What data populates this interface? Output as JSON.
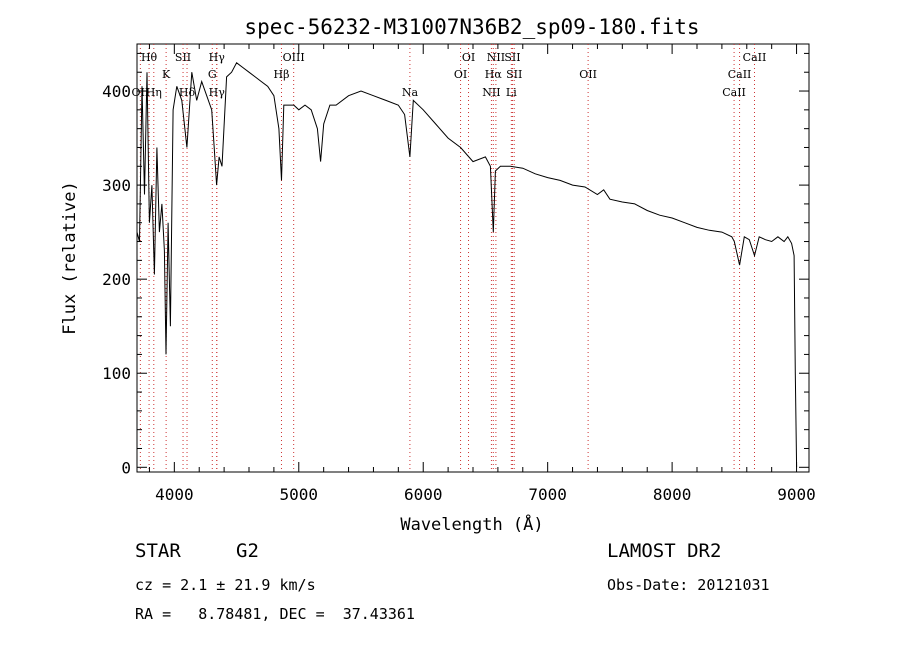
{
  "chart_data": {
    "type": "line",
    "title": "spec-56232-M31007N36B2_sp09-180.fits",
    "xlabel": "Wavelength (Å)",
    "ylabel": "Flux (relative)",
    "xlim": [
      3700,
      9100
    ],
    "ylim": [
      -5,
      450
    ],
    "x_ticks": [
      4000,
      5000,
      6000,
      7000,
      8000,
      9000
    ],
    "y_ticks": [
      0,
      100,
      200,
      300,
      400
    ],
    "grid": false,
    "line_color": "#000000",
    "marker_color": "#cc3333",
    "series": [
      {
        "x": [
          3700,
          3720,
          3740,
          3760,
          3780,
          3800,
          3820,
          3840,
          3860,
          3880,
          3900,
          3920,
          3933,
          3950,
          3968,
          3990,
          4020,
          4060,
          4101,
          4140,
          4180,
          4220,
          4260,
          4300,
          4320,
          4340,
          4360,
          4383,
          4420,
          4460,
          4500,
          4550,
          4600,
          4650,
          4700,
          4750,
          4800,
          4840,
          4861,
          4880,
          4920,
          4960,
          5000,
          5050,
          5100,
          5150,
          5175,
          5200,
          5250,
          5300,
          5400,
          5500,
          5600,
          5700,
          5800,
          5850,
          5893,
          5920,
          6000,
          6100,
          6200,
          6300,
          6400,
          6500,
          6540,
          6563,
          6580,
          6620,
          6700,
          6800,
          6900,
          7000,
          7100,
          7200,
          7300,
          7400,
          7450,
          7500,
          7600,
          7700,
          7800,
          7900,
          8000,
          8100,
          8200,
          8300,
          8400,
          8480,
          8500,
          8542,
          8580,
          8620,
          8662,
          8700,
          8750,
          8800,
          8850,
          8900,
          8930,
          8960,
          8980,
          8990,
          9000
        ],
        "y": [
          250,
          240,
          405,
          290,
          420,
          260,
          300,
          205,
          340,
          250,
          280,
          230,
          120,
          260,
          150,
          380,
          405,
          390,
          340,
          420,
          390,
          410,
          395,
          380,
          340,
          300,
          330,
          320,
          415,
          420,
          430,
          425,
          420,
          415,
          410,
          405,
          395,
          360,
          305,
          385,
          385,
          385,
          380,
          385,
          380,
          360,
          325,
          365,
          385,
          385,
          395,
          400,
          395,
          390,
          385,
          375,
          330,
          390,
          380,
          365,
          350,
          340,
          325,
          330,
          320,
          250,
          315,
          320,
          320,
          318,
          312,
          308,
          305,
          300,
          298,
          290,
          295,
          285,
          282,
          280,
          273,
          268,
          265,
          260,
          255,
          252,
          250,
          245,
          240,
          215,
          245,
          242,
          225,
          245,
          242,
          240,
          245,
          240,
          245,
          238,
          225,
          100,
          0
        ]
      }
    ],
    "annotations": [
      {
        "label": "Hθ",
        "x": 3797,
        "row": 1
      },
      {
        "label": "OII",
        "x": 3727,
        "row": 3
      },
      {
        "label": "Hη",
        "x": 3835,
        "row": 3
      },
      {
        "label": "K",
        "x": 3934,
        "row": 2
      },
      {
        "label": "SII",
        "x": 4070,
        "row": 1
      },
      {
        "label": "Hδ",
        "x": 4102,
        "row": 3
      },
      {
        "label": "Hγ",
        "x": 4341,
        "row": 1
      },
      {
        "label": "G",
        "x": 4305,
        "row": 2
      },
      {
        "label": "Hγ",
        "x": 4341,
        "row": 3
      },
      {
        "label": "OIII",
        "x": 4959,
        "row": 1
      },
      {
        "label": "Hβ",
        "x": 4861,
        "row": 2
      },
      {
        "label": "Na",
        "x": 5893,
        "row": 3
      },
      {
        "label": "OI",
        "x": 6364,
        "row": 1
      },
      {
        "label": "OI",
        "x": 6300,
        "row": 2
      },
      {
        "label": "NII",
        "x": 6584,
        "row": 1
      },
      {
        "label": "SII",
        "x": 6717,
        "row": 1
      },
      {
        "label": "Hα",
        "x": 6563,
        "row": 2
      },
      {
        "label": "SII",
        "x": 6731,
        "row": 2
      },
      {
        "label": "NII",
        "x": 6548,
        "row": 3
      },
      {
        "label": "Li",
        "x": 6708,
        "row": 3
      },
      {
        "label": "OII",
        "x": 7325,
        "row": 2
      },
      {
        "label": "CaII",
        "x": 8662,
        "row": 1
      },
      {
        "label": "CaII",
        "x": 8542,
        "row": 2
      },
      {
        "label": "CaII",
        "x": 8498,
        "row": 3
      }
    ]
  },
  "info": {
    "object_class": "STAR",
    "subclass": "G2",
    "survey": "LAMOST DR2",
    "redshift": "cz = 2.1 ± 21.9 km/s",
    "obs_date": "Obs-Date: 20121031",
    "coords": "RA =   8.78481, DEC =  37.43361"
  }
}
